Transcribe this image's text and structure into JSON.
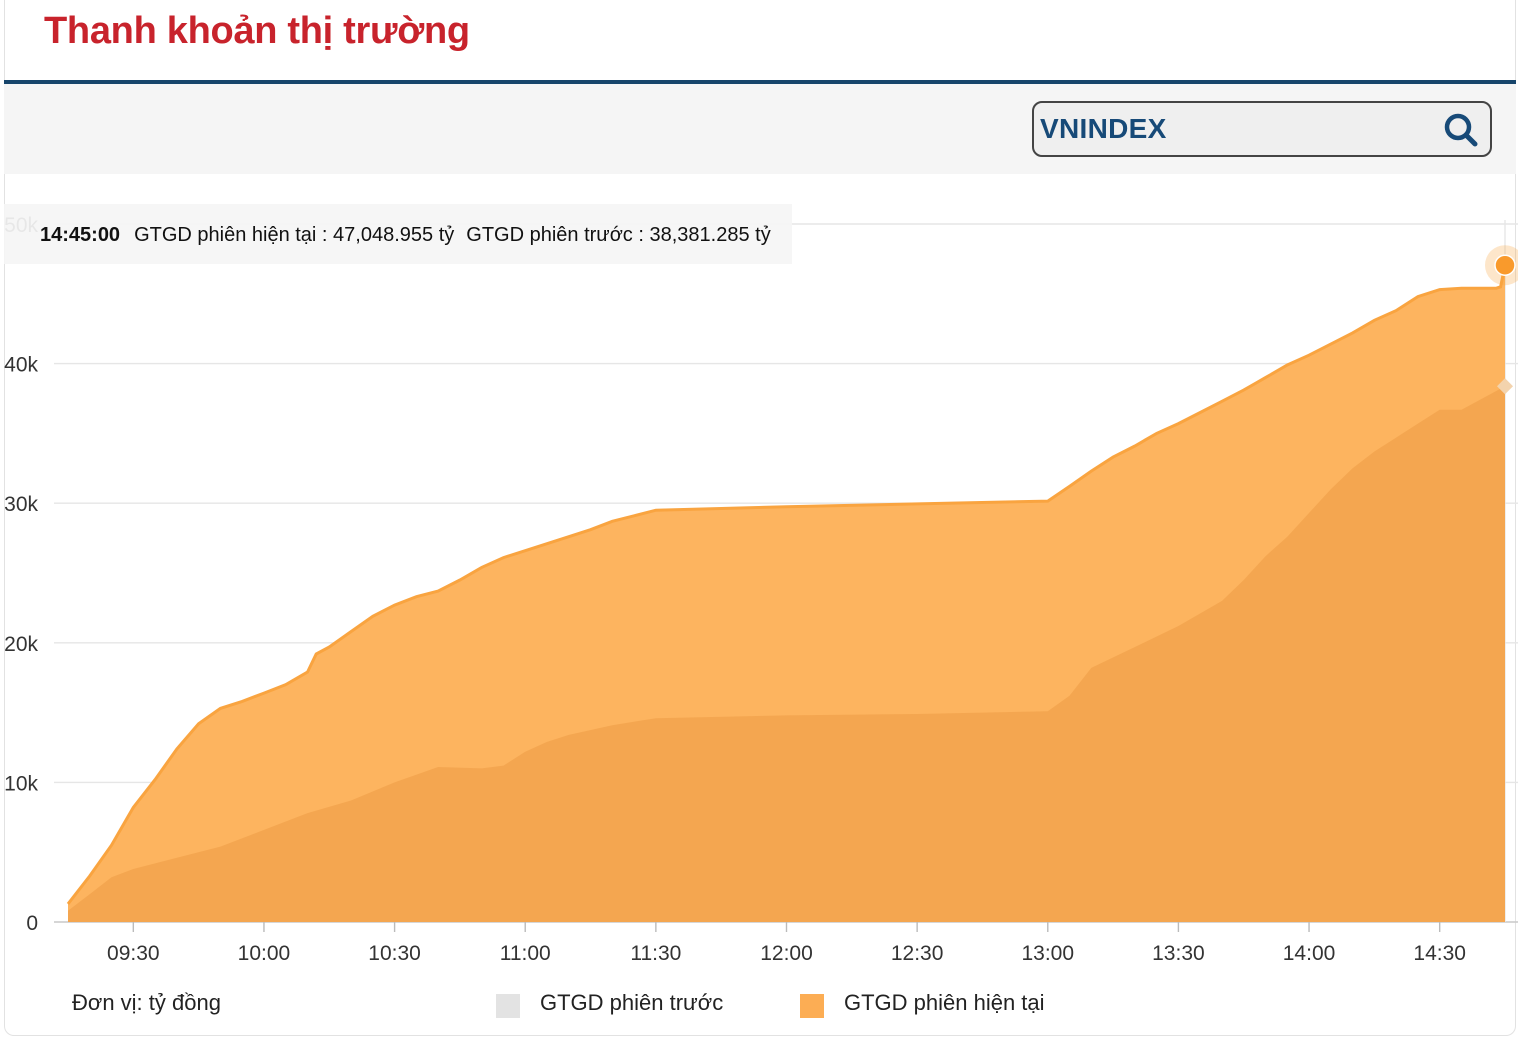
{
  "header": {
    "title": "Thanh khoản thị trường"
  },
  "search": {
    "value": "VNINDEX",
    "icon": "search-icon"
  },
  "tooltip": {
    "time": "14:45:00",
    "current_text": "GTGD phiên hiện tại : 47,048.955 tỷ",
    "previous_text": "GTGD phiên trước : 38,381.285 tỷ"
  },
  "footer": {
    "unit": "Đơn vị: tỷ đồng"
  },
  "legend": [
    {
      "label": "GTGD phiên trước",
      "color": "#e3e3e3"
    },
    {
      "label": "GTGD phiên hiện tại",
      "color": "#fcad54"
    }
  ],
  "chart_data": {
    "type": "area",
    "x_ticks": [
      "09:30",
      "10:00",
      "10:30",
      "11:00",
      "11:30",
      "12:00",
      "12:30",
      "13:00",
      "13:30",
      "14:00",
      "14:30"
    ],
    "y_ticks": [
      "0",
      "10k",
      "20k",
      "30k",
      "40k",
      "50k"
    ],
    "ylim": [
      0,
      50000
    ],
    "x_range": [
      "09:15",
      "14:45"
    ],
    "grid": true,
    "series": [
      {
        "name": "GTGD phiên hiện tại",
        "color": "#f9a440",
        "points": [
          [
            "09:15",
            1300
          ],
          [
            "09:20",
            3300
          ],
          [
            "09:25",
            5500
          ],
          [
            "09:30",
            8200
          ],
          [
            "09:35",
            10200
          ],
          [
            "09:40",
            12400
          ],
          [
            "09:45",
            14200
          ],
          [
            "09:50",
            15300
          ],
          [
            "09:55",
            15800
          ],
          [
            "10:00",
            16400
          ],
          [
            "10:05",
            17000
          ],
          [
            "10:10",
            17900
          ],
          [
            "10:12",
            19200
          ],
          [
            "10:15",
            19700
          ],
          [
            "10:20",
            20800
          ],
          [
            "10:25",
            21900
          ],
          [
            "10:30",
            22700
          ],
          [
            "10:35",
            23300
          ],
          [
            "10:40",
            23700
          ],
          [
            "10:45",
            24500
          ],
          [
            "10:50",
            25400
          ],
          [
            "10:55",
            26100
          ],
          [
            "11:00",
            26600
          ],
          [
            "11:05",
            27100
          ],
          [
            "11:10",
            27600
          ],
          [
            "11:15",
            28100
          ],
          [
            "11:20",
            28700
          ],
          [
            "11:25",
            29100
          ],
          [
            "11:30",
            29500
          ],
          [
            "12:00",
            29750
          ],
          [
            "12:30",
            29950
          ],
          [
            "13:00",
            30150
          ],
          [
            "13:05",
            31200
          ],
          [
            "13:10",
            32300
          ],
          [
            "13:15",
            33300
          ],
          [
            "13:20",
            34100
          ],
          [
            "13:25",
            35000
          ],
          [
            "13:30",
            35700
          ],
          [
            "13:35",
            36500
          ],
          [
            "13:40",
            37300
          ],
          [
            "13:45",
            38100
          ],
          [
            "13:50",
            39000
          ],
          [
            "13:55",
            39900
          ],
          [
            "14:00",
            40600
          ],
          [
            "14:05",
            41400
          ],
          [
            "14:10",
            42200
          ],
          [
            "14:15",
            43100
          ],
          [
            "14:20",
            43800
          ],
          [
            "14:25",
            44800
          ],
          [
            "14:30",
            45300
          ],
          [
            "14:35",
            45400
          ],
          [
            "14:43",
            45400
          ],
          [
            "14:44",
            45500
          ],
          [
            "14:45",
            47049
          ]
        ]
      },
      {
        "name": "GTGD phiên trước",
        "color": "#f3a54f",
        "points": [
          [
            "09:15",
            800
          ],
          [
            "09:20",
            2000
          ],
          [
            "09:25",
            3200
          ],
          [
            "09:30",
            3800
          ],
          [
            "09:40",
            4600
          ],
          [
            "09:50",
            5400
          ],
          [
            "10:00",
            6600
          ],
          [
            "10:10",
            7800
          ],
          [
            "10:20",
            8700
          ],
          [
            "10:30",
            10000
          ],
          [
            "10:40",
            11100
          ],
          [
            "10:50",
            11000
          ],
          [
            "10:55",
            11200
          ],
          [
            "11:00",
            12200
          ],
          [
            "11:05",
            12900
          ],
          [
            "11:10",
            13400
          ],
          [
            "11:20",
            14100
          ],
          [
            "11:30",
            14600
          ],
          [
            "12:00",
            14800
          ],
          [
            "12:30",
            14900
          ],
          [
            "13:00",
            15100
          ],
          [
            "13:05",
            16200
          ],
          [
            "13:10",
            18200
          ],
          [
            "13:20",
            19700
          ],
          [
            "13:30",
            21200
          ],
          [
            "13:40",
            23000
          ],
          [
            "13:45",
            24500
          ],
          [
            "13:50",
            26200
          ],
          [
            "13:55",
            27600
          ],
          [
            "14:00",
            29300
          ],
          [
            "14:05",
            31000
          ],
          [
            "14:10",
            32500
          ],
          [
            "14:15",
            33700
          ],
          [
            "14:20",
            34700
          ],
          [
            "14:25",
            35700
          ],
          [
            "14:30",
            36700
          ],
          [
            "14:35",
            36700
          ],
          [
            "14:45",
            38381
          ]
        ]
      }
    ]
  }
}
